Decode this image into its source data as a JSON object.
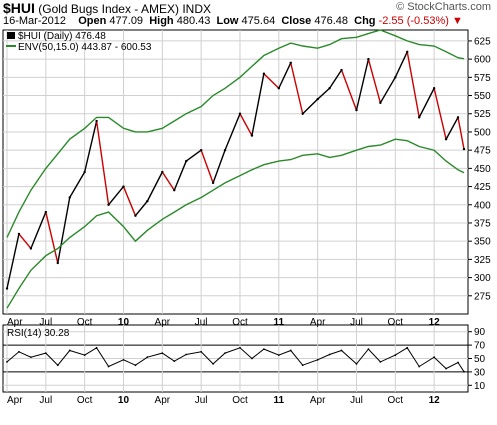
{
  "header": {
    "symbol": "$HUI",
    "name": "(Gold Bugs Index - AMEX)",
    "exchange": "INDX",
    "watermark": "© StockCharts.com",
    "date": "16-Mar-2012",
    "open_label": "Open",
    "open": "477.09",
    "high_label": "High",
    "high": "480.43",
    "low_label": "Low",
    "low": "475.64",
    "close_label": "Close",
    "close": "476.48",
    "chg_label": "Chg",
    "chg": "-2.55 (-0.53%)",
    "chg_arrow": "▼"
  },
  "legend": {
    "price": "$HUI (Daily) 476.48",
    "env": "ENV(50,15.0) 443.87 - 600.53",
    "rsi": "RSI(14) 30.28"
  },
  "colors": {
    "up": "#000000",
    "down": "#cc0000",
    "envelope": "#2a8a2a",
    "rsi_line": "#000000",
    "rsi_bands": "#000000",
    "grid": "#d0d0d0"
  },
  "chart_data": [
    {
      "type": "line",
      "title": "$HUI (Gold Bugs Index - AMEX) INDX",
      "ylim": [
        250,
        640
      ],
      "yticks": [
        275,
        300,
        325,
        350,
        375,
        400,
        425,
        450,
        475,
        500,
        525,
        550,
        575,
        600,
        625
      ],
      "grid": true,
      "legend_placement": "top-left",
      "x_tick_labels": [
        "Apr",
        "Jul",
        "Oct",
        "10",
        "Apr",
        "Jul",
        "Oct",
        "11",
        "Apr",
        "Jul",
        "Oct",
        "12"
      ],
      "x_tick_index": [
        0,
        13,
        26,
        39,
        52,
        65,
        78,
        91,
        104,
        117,
        130,
        143
      ],
      "x_range": [
        0,
        153
      ],
      "series": [
        {
          "name": "$HUI (Daily) 476.48",
          "kind": "price",
          "x": [
            0,
            4,
            8,
            13,
            17,
            21,
            26,
            30,
            34,
            39,
            43,
            47,
            52,
            56,
            60,
            65,
            69,
            73,
            78,
            82,
            86,
            91,
            95,
            99,
            104,
            108,
            112,
            117,
            121,
            125,
            130,
            134,
            138,
            143,
            147,
            151,
            153
          ],
          "values": [
            285,
            360,
            340,
            390,
            320,
            410,
            445,
            515,
            400,
            425,
            385,
            405,
            445,
            420,
            460,
            475,
            430,
            475,
            525,
            495,
            580,
            560,
            595,
            525,
            545,
            560,
            585,
            530,
            600,
            540,
            575,
            610,
            520,
            560,
            490,
            520,
            476.48
          ]
        },
        {
          "name": "ENV(50,15.0)",
          "kind": "envelope-upper",
          "x": [
            0,
            4,
            8,
            13,
            17,
            21,
            26,
            30,
            34,
            39,
            43,
            47,
            52,
            56,
            60,
            65,
            69,
            73,
            78,
            82,
            86,
            91,
            95,
            99,
            104,
            108,
            112,
            117,
            121,
            125,
            130,
            134,
            138,
            143,
            147,
            151,
            153
          ],
          "values": [
            355,
            390,
            420,
            450,
            470,
            490,
            505,
            520,
            520,
            505,
            500,
            500,
            505,
            515,
            525,
            535,
            550,
            560,
            575,
            590,
            605,
            615,
            622,
            618,
            615,
            620,
            628,
            630,
            635,
            640,
            632,
            625,
            620,
            618,
            610,
            602,
            600.53
          ]
        },
        {
          "name": "ENV(50,15.0)",
          "kind": "envelope-lower",
          "x": [
            0,
            4,
            8,
            13,
            17,
            21,
            26,
            30,
            34,
            39,
            43,
            47,
            52,
            56,
            60,
            65,
            69,
            73,
            78,
            82,
            86,
            91,
            95,
            99,
            104,
            108,
            112,
            117,
            121,
            125,
            130,
            134,
            138,
            143,
            147,
            151,
            153
          ],
          "values": [
            258,
            285,
            310,
            330,
            340,
            355,
            370,
            385,
            390,
            370,
            350,
            365,
            380,
            390,
            400,
            410,
            420,
            430,
            440,
            448,
            455,
            460,
            462,
            468,
            470,
            465,
            468,
            475,
            480,
            482,
            490,
            488,
            480,
            475,
            460,
            448,
            443.87
          ]
        }
      ]
    },
    {
      "type": "line",
      "title": "RSI(14) 30.28",
      "ylim": [
        0,
        100
      ],
      "yticks": [
        10,
        30,
        50,
        70,
        90
      ],
      "bands": [
        30,
        70
      ],
      "grid": true,
      "x_tick_labels": [
        "Apr",
        "Jul",
        "Oct",
        "10",
        "Apr",
        "Jul",
        "Oct",
        "11",
        "Apr",
        "Jul",
        "Oct",
        "12"
      ],
      "x_tick_index": [
        0,
        13,
        26,
        39,
        52,
        65,
        78,
        91,
        104,
        117,
        130,
        143
      ],
      "x_range": [
        0,
        153
      ],
      "series": [
        {
          "name": "RSI(14) 30.28",
          "x": [
            0,
            4,
            8,
            13,
            17,
            21,
            26,
            30,
            34,
            39,
            43,
            47,
            52,
            56,
            60,
            65,
            69,
            73,
            78,
            82,
            86,
            91,
            95,
            99,
            104,
            108,
            112,
            117,
            121,
            125,
            130,
            134,
            138,
            143,
            147,
            151,
            153
          ],
          "values": [
            45,
            60,
            52,
            58,
            40,
            62,
            55,
            66,
            38,
            48,
            40,
            52,
            58,
            46,
            56,
            60,
            42,
            58,
            66,
            50,
            64,
            55,
            62,
            40,
            48,
            56,
            62,
            42,
            64,
            45,
            55,
            66,
            38,
            52,
            35,
            44,
            30.28
          ]
        }
      ]
    }
  ]
}
